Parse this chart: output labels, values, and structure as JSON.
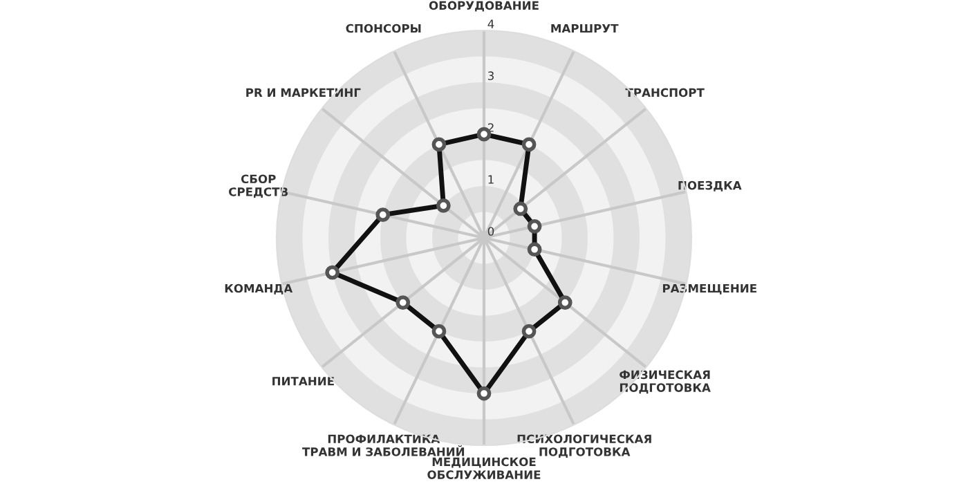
{
  "chart_data": {
    "type": "radar",
    "categories": [
      "ОБОРУДОВАНИЕ",
      "МАРШРУТ",
      "ТРАНСПОРТ",
      "ПОЕЗДКА",
      "РАЗМЕЩЕНИЕ",
      "ФИЗИЧЕСКАЯ\nПОДГОТОВКА",
      "ПСИХОЛОГИЧЕСКАЯ\nПОДГОТОВКА",
      "МЕДИЦИНСКОЕ\nОБСЛУЖИВАНИЕ",
      "ПРОФИЛАКТИКА\nТРАВМ И ЗАБОЛЕВАНИЙ",
      "ПИТАНИЕ",
      "КОМАНДА",
      "СБОР\nСРЕДСТВ",
      "PR И МАРКЕТИНГ",
      "СПОНСОРЫ"
    ],
    "series": [
      {
        "color": "#111111",
        "values": [
          2,
          2,
          0.9,
          1,
          1,
          2,
          2,
          3,
          2,
          2,
          3,
          2,
          1,
          2
        ]
      }
    ],
    "ylim": [
      0,
      4
    ],
    "yticks": [
      0,
      1,
      2,
      3,
      4
    ],
    "grid": true,
    "marker": "circle",
    "line_style": "solid"
  }
}
